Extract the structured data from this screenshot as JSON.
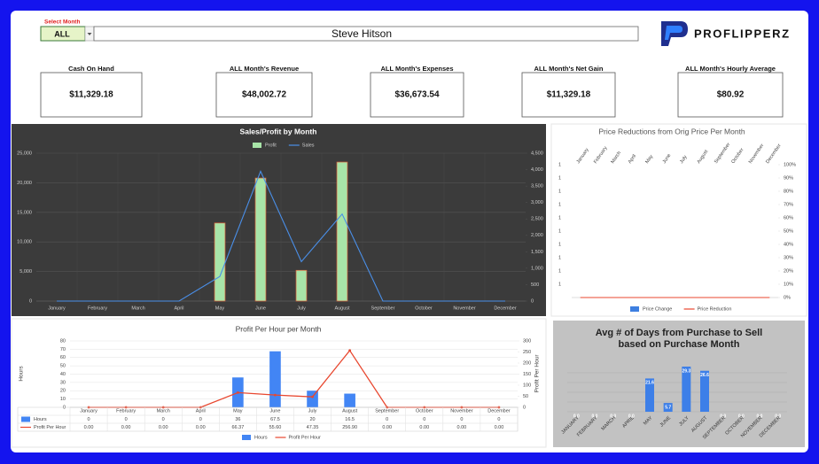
{
  "header": {
    "select_label": "Select Month",
    "selected": "ALL",
    "name": "Steve Hitson",
    "logo": "PROFLIPPERZ"
  },
  "kpis": [
    {
      "label": "Cash On Hand",
      "value": "$11,329.18"
    },
    {
      "label": "ALL Month's Revenue",
      "value": "$48,002.72"
    },
    {
      "label": "ALL Month's Expenses",
      "value": "$36,673.54"
    },
    {
      "label": "ALL Month's Net Gain",
      "value": "$11,329.18"
    },
    {
      "label": "ALL Month's Hourly Average",
      "value": "$80.92"
    }
  ],
  "chart_data": [
    {
      "type": "bar",
      "title": "Sales/Profit by Month",
      "categories": [
        "January",
        "February",
        "March",
        "April",
        "May",
        "June",
        "July",
        "August",
        "September",
        "October",
        "November",
        "December"
      ],
      "series": [
        {
          "name": "Profit",
          "type": "bar",
          "color": "#a8e4a8",
          "values": [
            0,
            0,
            0,
            0,
            13200,
            20800,
            5200,
            23500,
            0,
            0,
            0,
            0
          ]
        },
        {
          "name": "Sales",
          "type": "line",
          "axis": "y2",
          "color": "#4a8fe8",
          "values": [
            0,
            0,
            0,
            0,
            750,
            3950,
            1200,
            2650,
            0,
            0,
            0,
            0
          ]
        }
      ],
      "ylim": [
        0,
        25000
      ],
      "yticks": [
        0,
        {
          "value": 5000,
          "label": "5,000"
        },
        {
          "value": 10000,
          "label": "10,000"
        },
        {
          "value": 15000,
          "label": "15,000"
        },
        {
          "value": 20000,
          "label": "20,000"
        },
        {
          "value": 25000,
          "label": "25,000"
        }
      ],
      "y2lim": [
        0,
        4500
      ],
      "y2ticks": [
        0,
        500,
        {
          "value": 1000,
          "label": "1,000"
        },
        {
          "value": 1500,
          "label": "1,500"
        },
        {
          "value": 2000,
          "label": "2,000"
        },
        {
          "value": 2500,
          "label": "2,500"
        },
        {
          "value": 3000,
          "label": "3,000"
        },
        {
          "value": 3500,
          "label": "3,500"
        },
        {
          "value": 4000,
          "label": "4,000"
        },
        {
          "value": 4500,
          "label": "4,500"
        }
      ],
      "grid": true,
      "legend": "top"
    },
    {
      "type": "line",
      "title": "Price Reductions from Orig Price Per Month",
      "categories": [
        "January",
        "February",
        "March",
        "April",
        "May",
        "June",
        "July",
        "August",
        "September",
        "October",
        "November",
        "December"
      ],
      "series": [
        {
          "name": "Price Change",
          "type": "bar",
          "axis": "y2",
          "color": "#3d7fe0",
          "values": [
            0,
            0,
            0,
            0,
            0,
            0,
            0,
            0,
            0,
            0,
            0,
            0
          ]
        },
        {
          "name": "Price Reduction",
          "type": "line",
          "axis": "y2",
          "color": "#e8472f",
          "values": [
            0,
            0,
            0,
            0,
            0,
            0,
            0,
            0,
            0,
            0,
            0,
            0
          ]
        }
      ],
      "ylim": [
        0.4,
        1.4
      ],
      "yticks": [
        {
          "value": 0.5,
          "label": "1"
        },
        {
          "value": 0.6,
          "label": "1"
        },
        {
          "value": 0.7,
          "label": "1"
        },
        {
          "value": 0.8,
          "label": "1"
        },
        {
          "value": 0.9,
          "label": "1"
        },
        {
          "value": 1.0,
          "label": "1"
        },
        {
          "value": 1.1,
          "label": "1"
        },
        {
          "value": 1.2,
          "label": "1"
        },
        {
          "value": 1.3,
          "label": "1"
        },
        {
          "value": 1.4,
          "label": "1"
        }
      ],
      "y2lim": [
        0,
        100
      ],
      "y2ticks": [
        {
          "value": 0,
          "label": "0%"
        },
        {
          "value": 10,
          "label": "10%"
        },
        {
          "value": 20,
          "label": "20%"
        },
        {
          "value": 30,
          "label": "30%"
        },
        {
          "value": 40,
          "label": "40%"
        },
        {
          "value": 50,
          "label": "50%"
        },
        {
          "value": 60,
          "label": "60%"
        },
        {
          "value": 70,
          "label": "70%"
        },
        {
          "value": 80,
          "label": "80%"
        },
        {
          "value": 90,
          "label": "90%"
        },
        {
          "value": 100,
          "label": "100%"
        }
      ],
      "grid": false,
      "legend": "bottom"
    },
    {
      "type": "bar",
      "title": "Profit Per Hour per Month",
      "y_label": "Hours",
      "y2_label": "Profit Per Hour",
      "categories": [
        "January",
        "February",
        "March",
        "April",
        "May",
        "June",
        "July",
        "August",
        "September",
        "October",
        "November",
        "December"
      ],
      "series": [
        {
          "name": "Hours",
          "type": "bar",
          "color": "#4285f4",
          "values": [
            0,
            0,
            0,
            0,
            36,
            67.5,
            20,
            16.5,
            0,
            0,
            0,
            0
          ]
        },
        {
          "name": "Profit Per Hour",
          "type": "line",
          "axis": "y2",
          "color": "#e8472f",
          "values": [
            0,
            0,
            0,
            0,
            66.37,
            55.6,
            47.35,
            256.9,
            0,
            0,
            0,
            0
          ],
          "value_labels": [
            "0.00",
            "0.00",
            "0.00",
            "0.00",
            "66.37",
            "55.60",
            "47.35",
            "256.90",
            "0.00",
            "0.00",
            "0.00",
            "0.00"
          ]
        }
      ],
      "ylim": [
        0,
        80
      ],
      "yticks": [
        0,
        10,
        20,
        30,
        40,
        50,
        60,
        70,
        80
      ],
      "y2lim": [
        0,
        300
      ],
      "y2ticks": [
        0,
        50,
        100,
        150,
        200,
        250,
        300
      ],
      "grid": true,
      "legend": "bottom"
    },
    {
      "type": "bar",
      "title": [
        "Avg # of Days from Purchase to Sell",
        "based on Purchase Month"
      ],
      "categories": [
        "JANUARY",
        "FEBRUARY",
        "MARCH",
        "APRIL",
        "MAY",
        "JUNE",
        "JULY",
        "AUGUST",
        "SEPTEMBER",
        "OCTOBER",
        "NOVEMBER",
        "DECEMBER"
      ],
      "values": [
        0,
        0,
        0,
        0,
        21.6,
        5.7,
        29.3,
        26.6,
        0,
        0,
        0,
        0
      ],
      "value_labels": [
        "0.0",
        "0.0",
        "0.0",
        "0.0",
        "21.6",
        "5.7",
        "29.3",
        "26.6",
        "0.0",
        "0.0",
        "0.0",
        "0.0"
      ],
      "color": "#3d7fe8"
    }
  ]
}
